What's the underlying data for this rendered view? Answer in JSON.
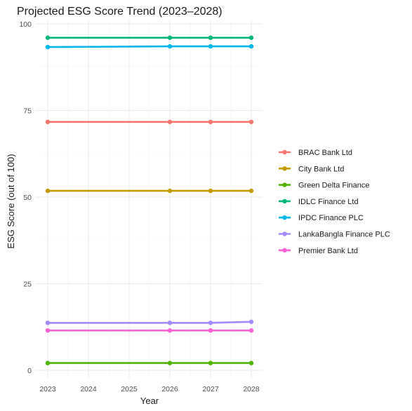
{
  "chart_data": {
    "type": "line",
    "title": "Projected ESG Score Trend (2023–2028)",
    "xlabel": "Year",
    "ylabel": "ESG Score (out of 100)",
    "x": [
      2023,
      2024,
      2025,
      2026,
      2027,
      2028
    ],
    "xlim": [
      2023,
      2028
    ],
    "ylim": [
      0,
      100
    ],
    "y_ticks": [
      0,
      25,
      50,
      75,
      100
    ],
    "x_ticks": [
      "2023",
      "2024",
      "2025",
      "2026",
      "2027",
      "2028"
    ],
    "grid": true,
    "legend_position": "right",
    "series": [
      {
        "name": "BRAC Bank Ltd",
        "color": "#F8766D",
        "x": [
          2023,
          2026,
          2027,
          2028
        ],
        "values": [
          71.7,
          71.7,
          71.7,
          71.7
        ]
      },
      {
        "name": "City Bank Ltd",
        "color": "#C49A00",
        "x": [
          2023,
          2026,
          2027,
          2028
        ],
        "values": [
          51.8,
          51.8,
          51.8,
          51.8
        ]
      },
      {
        "name": "Green Delta Finance",
        "color": "#53B400",
        "x": [
          2023,
          2026,
          2027,
          2028
        ],
        "values": [
          2.1,
          2.1,
          2.1,
          2.1
        ]
      },
      {
        "name": "IDLC Finance Ltd",
        "color": "#00B67B",
        "x": [
          2023,
          2026,
          2027,
          2028
        ],
        "values": [
          96.0,
          96.0,
          96.0,
          96.0
        ]
      },
      {
        "name": "IPDC Finance PLC",
        "color": "#00B6EB",
        "x": [
          2023,
          2026,
          2027,
          2028
        ],
        "values": [
          93.3,
          93.5,
          93.5,
          93.5
        ]
      },
      {
        "name": "LankaBangla Finance PLC",
        "color": "#A58AFF",
        "x": [
          2023,
          2026,
          2027,
          2028
        ],
        "values": [
          13.7,
          13.7,
          13.7,
          14.0
        ]
      },
      {
        "name": "Premier Bank Ltd",
        "color": "#FB61D7",
        "x": [
          2023,
          2026,
          2027,
          2028
        ],
        "values": [
          11.5,
          11.5,
          11.5,
          11.5
        ]
      }
    ]
  }
}
